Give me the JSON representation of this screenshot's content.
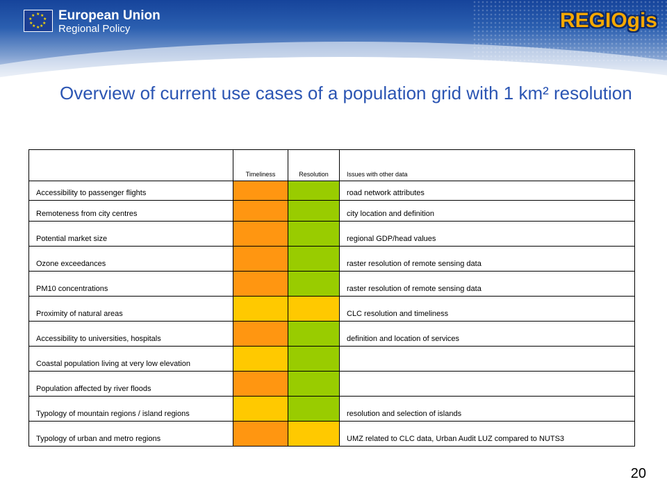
{
  "header": {
    "org_title": "European Union",
    "org_subtitle": "Regional Policy",
    "brand": "REGIOgis"
  },
  "slide": {
    "title": "Overview of current use cases of a population grid with 1 km² resolution",
    "page_number": "20"
  },
  "colors": {
    "orange": "#ff9611",
    "yellow": "#ffc900",
    "green": "#99cc00",
    "title_blue": "#2b55b3"
  },
  "table": {
    "headers": [
      "",
      "Timeliness",
      "Resolution",
      "Issues with other data"
    ],
    "rows": [
      {
        "name": "Accessibility to passenger flights",
        "timeliness": "orange",
        "resolution": "green",
        "issues": "road network attributes"
      },
      {
        "name": "Remoteness from city centres",
        "timeliness": "orange",
        "resolution": "green",
        "issues": "city location and definition"
      },
      {
        "name": "Potential market size",
        "timeliness": "orange",
        "resolution": "green",
        "issues": "regional GDP/head values"
      },
      {
        "name": "Ozone exceedances",
        "timeliness": "orange",
        "resolution": "green",
        "issues": "raster resolution of remote sensing data"
      },
      {
        "name": "PM10 concentrations",
        "timeliness": "orange",
        "resolution": "green",
        "issues": "raster resolution of remote sensing data"
      },
      {
        "name": "Proximity of natural areas",
        "timeliness": "yellow",
        "resolution": "yellow",
        "issues": "CLC resolution and timeliness"
      },
      {
        "name": "Accessibility to universities, hospitals",
        "timeliness": "orange",
        "resolution": "green",
        "issues": "definition and location of services"
      },
      {
        "name": "Coastal population living at very low elevation",
        "timeliness": "yellow",
        "resolution": "green",
        "issues": ""
      },
      {
        "name": "Population affected by river floods",
        "timeliness": "orange",
        "resolution": "green",
        "issues": ""
      },
      {
        "name": "Typology of mountain regions / island regions",
        "timeliness": "yellow",
        "resolution": "green",
        "issues": "resolution and selection of islands"
      },
      {
        "name": "Typology of urban and metro regions",
        "timeliness": "orange",
        "resolution": "yellow",
        "issues": "UMZ related to CLC data, Urban Audit LUZ compared to NUTS3"
      }
    ]
  }
}
